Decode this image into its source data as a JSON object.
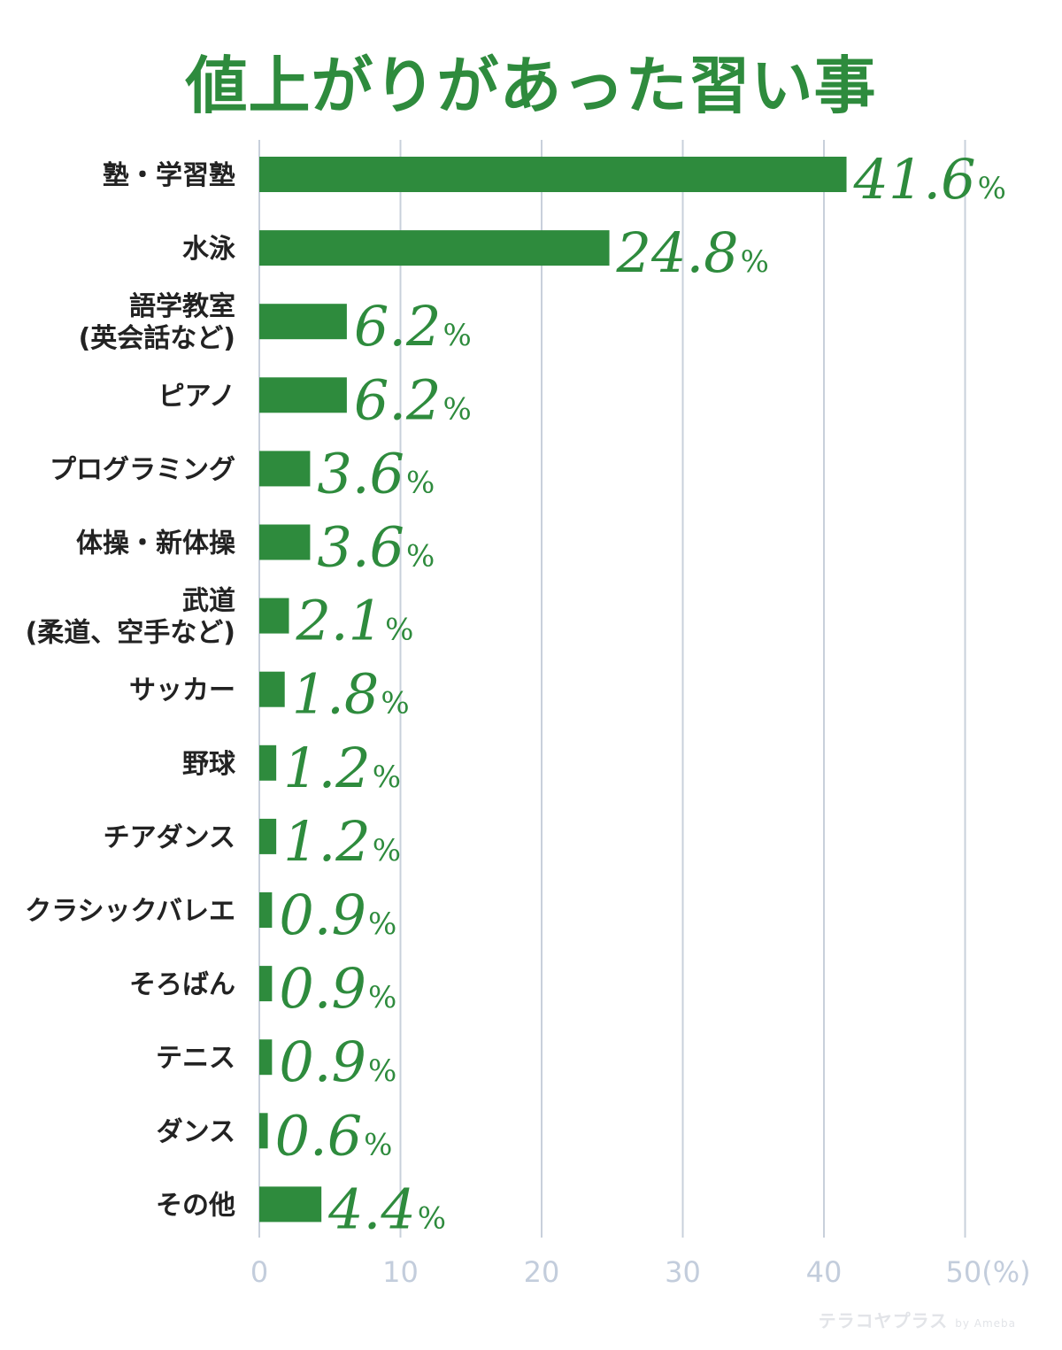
{
  "chart_data": {
    "type": "bar",
    "orientation": "horizontal",
    "title": "値上がりがあった習い事",
    "unit": "%",
    "categories": [
      [
        "塾・学習塾"
      ],
      [
        "水泳"
      ],
      [
        "語学教室",
        "(英会話など)"
      ],
      [
        "ピアノ"
      ],
      [
        "プログラミング"
      ],
      [
        "体操・新体操"
      ],
      [
        "武道",
        "(柔道、空手など)"
      ],
      [
        "サッカー"
      ],
      [
        "野球"
      ],
      [
        "チアダンス"
      ],
      [
        "クラシックバレエ"
      ],
      [
        "そろばん"
      ],
      [
        "テニス"
      ],
      [
        "ダンス"
      ],
      [
        "その他"
      ]
    ],
    "values": [
      41.6,
      24.8,
      6.2,
      6.2,
      3.6,
      3.6,
      2.1,
      1.8,
      1.2,
      1.2,
      0.9,
      0.9,
      0.9,
      0.6,
      4.4
    ],
    "value_labels": [
      "41.6",
      "24.8",
      "6.2",
      "6.2",
      "3.6",
      "3.6",
      "2.1",
      "1.8",
      "1.2",
      "1.2",
      "0.9",
      "0.9",
      "0.9",
      "0.6",
      "4.4"
    ],
    "xlim": [
      0,
      50
    ],
    "x_ticks": [
      "0",
      "10",
      "20",
      "30",
      "40",
      "50(%)"
    ],
    "x_tick_values": [
      0,
      10,
      20,
      30,
      40,
      50
    ],
    "grid": true,
    "colors": {
      "bar": "#2e8b3d",
      "grid": "#c8d0db",
      "tick_label": "#c3cddc",
      "category_label": "#222222",
      "title": "#2e8b3d"
    }
  },
  "watermark": {
    "brand": "テラコヤプラス",
    "by": "by Ameba"
  }
}
